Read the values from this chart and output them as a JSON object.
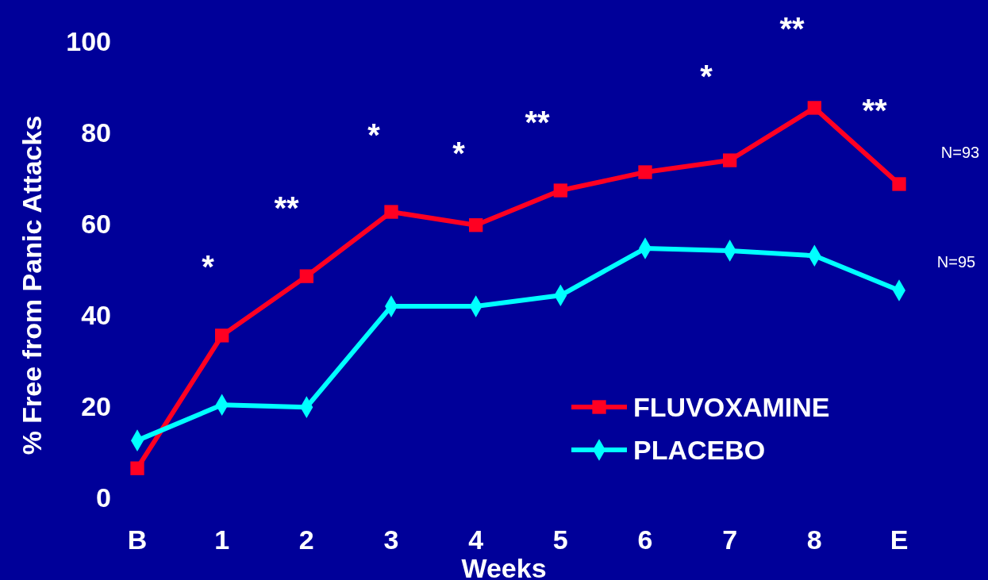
{
  "chart_data": {
    "type": "line",
    "xlabel": "Weeks",
    "ylabel": "% Free from Panic Attacks",
    "categories": [
      "B",
      "1",
      "2",
      "3",
      "4",
      "5",
      "6",
      "7",
      "8",
      "E"
    ],
    "ylim": [
      0,
      100
    ],
    "yticks": [
      0,
      20,
      40,
      60,
      80,
      100
    ],
    "grid": false,
    "legend": "bottom right",
    "line_style": "solid",
    "series": [
      {
        "name": "FLUVOXAMINE",
        "color": "#ff0022",
        "marker": "square",
        "values": [
          6.4,
          35.5,
          48.5,
          62.6,
          59.7,
          67.3,
          71.3,
          73.9,
          85.4,
          68.7
        ]
      },
      {
        "name": "PLACEBO",
        "color": "#00ffff",
        "marker": "diamond",
        "values": [
          12.5,
          20.3,
          19.8,
          41.9,
          41.9,
          44.3,
          54.6,
          54.1,
          53,
          45.4
        ]
      }
    ],
    "annotations": [
      "*",
      "**",
      "*",
      "*",
      "**",
      "*",
      "**",
      "**",
      "N=93",
      "N=95"
    ]
  }
}
